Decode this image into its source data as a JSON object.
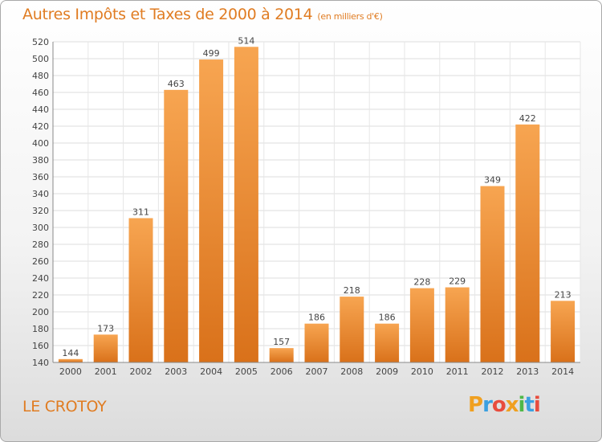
{
  "chart_data": {
    "type": "bar",
    "title": "Autres Impôts et Taxes de 2000 à 2014",
    "subtitle": "(en milliers d'€)",
    "categories": [
      "2000",
      "2001",
      "2002",
      "2003",
      "2004",
      "2005",
      "2006",
      "2007",
      "2008",
      "2009",
      "2010",
      "2011",
      "2012",
      "2013",
      "2014"
    ],
    "values": [
      144,
      173,
      311,
      463,
      499,
      514,
      157,
      186,
      218,
      186,
      228,
      229,
      349,
      422,
      213
    ],
    "ylim": [
      140,
      520
    ],
    "yticks": [
      140,
      160,
      180,
      200,
      220,
      240,
      260,
      280,
      300,
      320,
      340,
      360,
      380,
      400,
      420,
      440,
      460,
      480,
      500,
      520
    ],
    "grid": true,
    "bar_color": "#f0963a"
  },
  "footer": {
    "location": "LE CROTOY",
    "logo": "Proxiti"
  }
}
